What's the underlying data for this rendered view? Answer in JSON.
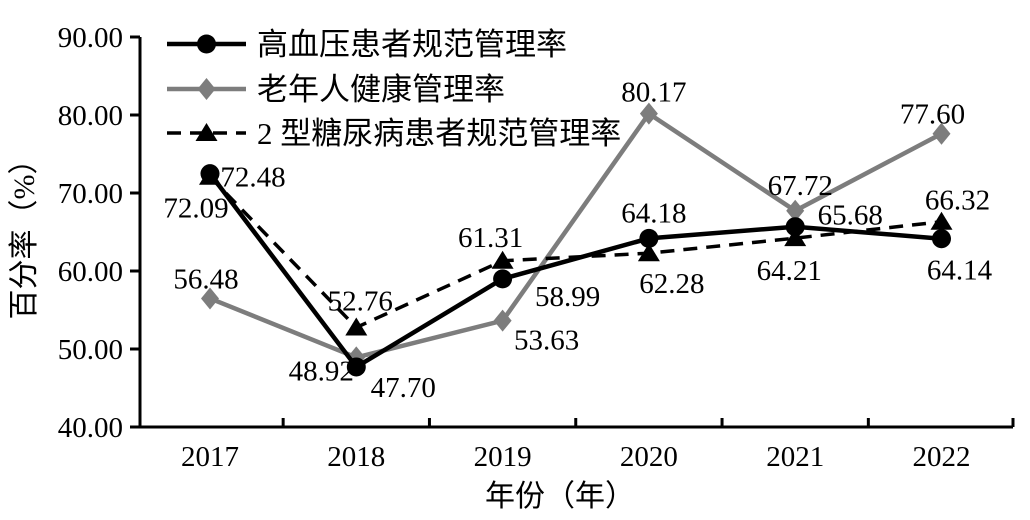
{
  "chart_data": {
    "type": "line",
    "title": "",
    "xlabel": "年份（年）",
    "ylabel": "百分率（%）",
    "categories": [
      "2017",
      "2018",
      "2019",
      "2020",
      "2021",
      "2022"
    ],
    "ylim": [
      40,
      90
    ],
    "grid": false,
    "legend_position": "top-left-inside",
    "yticks": [
      {
        "value": 40,
        "label": "40.00"
      },
      {
        "value": 50,
        "label": "50.00"
      },
      {
        "value": 60,
        "label": "60.00"
      },
      {
        "value": 70,
        "label": "70.00"
      },
      {
        "value": 80,
        "label": "80.00"
      },
      {
        "value": 90,
        "label": "90.00"
      }
    ],
    "series": [
      {
        "name": "高血压患者规范管理率",
        "marker": "circle",
        "line": "solid",
        "color": "#000000",
        "values": [
          72.48,
          47.7,
          58.99,
          64.18,
          65.68,
          64.14
        ],
        "labels": [
          "72.48",
          "47.70",
          "58.99",
          "64.18",
          "65.68",
          "64.14"
        ]
      },
      {
        "name": "老年人健康管理率",
        "marker": "diamond",
        "line": "solid",
        "color": "#7d7d7d",
        "values": [
          56.48,
          48.92,
          53.63,
          80.17,
          67.72,
          77.6
        ],
        "labels": [
          "56.48",
          "48.92",
          "53.63",
          "80.17",
          "67.72",
          "77.60"
        ]
      },
      {
        "name": "2 型糖尿病患者规范管理率",
        "marker": "triangle",
        "line": "dashed",
        "color": "#000000",
        "values": [
          72.09,
          52.76,
          61.31,
          62.28,
          64.21,
          66.32
        ],
        "labels": [
          "72.09",
          "52.76",
          "61.31",
          "62.28",
          "64.21",
          "66.32"
        ]
      }
    ]
  }
}
